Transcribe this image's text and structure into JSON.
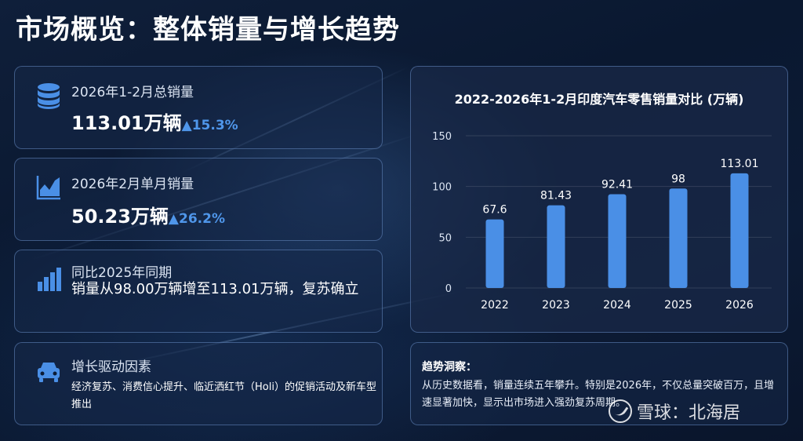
{
  "title": "市场概览：整体销量与增长趋势",
  "cards": [
    {
      "icon": "database-coins-icon",
      "label": "2026年1-2月总销量",
      "value": "113.01万辆",
      "growth": "15.3%"
    },
    {
      "icon": "area-chart-icon",
      "label": "2026年2月单月销量",
      "value": "50.23万辆",
      "growth": "26.2%"
    },
    {
      "icon": "bar-chart-icon",
      "label": "同比2025年同期",
      "desc": "销量从98.00万辆增至113.01万辆，复苏确立"
    },
    {
      "icon": "car-icon",
      "label": "增长驱动因素",
      "desc": "经济复苏、消费信心提升、临近洒红节（Holi）的促销活动及新车型推出"
    }
  ],
  "chart_data": {
    "type": "bar",
    "title": "2022-2026年1-2月印度汽车零售销量对比 (万辆)",
    "categories": [
      "2022",
      "2023",
      "2024",
      "2025",
      "2026"
    ],
    "values": [
      67.6,
      81.43,
      92.41,
      98,
      113.01
    ],
    "value_labels": [
      "67.6",
      "81.43",
      "92.41",
      "98",
      "113.01"
    ],
    "yticks": [
      "0",
      "50",
      "100",
      "150"
    ],
    "ylim": [
      0,
      150
    ],
    "bar_color": "#4a8fe6"
  },
  "insight": {
    "title": "趋势洞察：",
    "body": "从历史数据看，销量连续五年攀升。特别是2026年，不仅总量突破百万，且增速显著加快，显示出市场进入强劲复苏周期。"
  },
  "watermark": "雪球：北海居",
  "colors": {
    "accent": "#4f96ea",
    "background": "#0c1b35"
  }
}
